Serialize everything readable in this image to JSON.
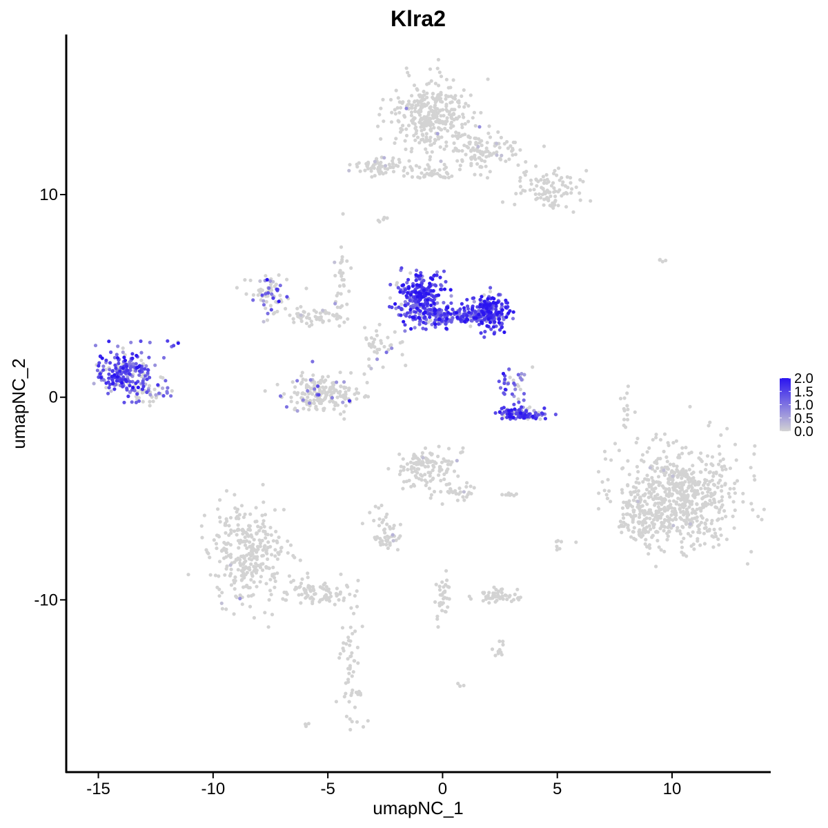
{
  "chart_data": {
    "type": "scatter",
    "title": "Klra2",
    "xlabel": "umapNC_1",
    "ylabel": "umapNC_2",
    "xlim": [
      -16.4,
      14.3
    ],
    "ylim": [
      -18.5,
      17.9
    ],
    "x_ticks": [
      -15,
      -10,
      -5,
      0,
      5,
      10
    ],
    "x_tick_labels": [
      "-15",
      "-10",
      "-5",
      "0",
      "5",
      "10"
    ],
    "y_ticks": [
      -10,
      0,
      10
    ],
    "y_tick_labels": [
      "-10",
      "0",
      "10"
    ],
    "grid": false,
    "color_scale": {
      "low_color": "#d3d3d3",
      "high_color": "#2a14f0",
      "min": 0.0,
      "max": 2.0,
      "ticks": [
        0.0,
        0.5,
        1.0,
        1.5,
        2.0
      ],
      "tick_labels": [
        "0.0",
        "0.5",
        "1.0",
        "1.5",
        "2.0"
      ],
      "legend_position": "right"
    },
    "clusters": [
      {
        "cx": -0.5,
        "cy": 13.9,
        "rx": 1.6,
        "ry": 1.6,
        "n": 320,
        "expr": 0.0,
        "expr_frac": 0.01
      },
      {
        "cx": 1.8,
        "cy": 12.1,
        "rx": 1.4,
        "ry": 0.9,
        "n": 110,
        "expr": 0.0,
        "expr_frac": 0.02
      },
      {
        "cx": 4.6,
        "cy": 10.2,
        "rx": 1.2,
        "ry": 0.9,
        "n": 100,
        "expr": 0.0,
        "expr_frac": 0.0
      },
      {
        "cx": -2.8,
        "cy": 11.4,
        "rx": 1.2,
        "ry": 0.4,
        "n": 60,
        "expr": 0.0,
        "expr_frac": 0.03
      },
      {
        "cx": -0.6,
        "cy": 11.1,
        "rx": 1.0,
        "ry": 0.3,
        "n": 40,
        "expr": 0.0,
        "expr_frac": 0.0
      },
      {
        "cx": -2.6,
        "cy": 8.8,
        "rx": 0.2,
        "ry": 0.2,
        "n": 6,
        "expr": 0.0,
        "expr_frac": 0.0
      },
      {
        "cx": -13.8,
        "cy": 1.2,
        "rx": 1.2,
        "ry": 1.0,
        "n": 220,
        "expr": 1.3,
        "expr_frac": 0.9
      },
      {
        "cx": -12.8,
        "cy": 0.2,
        "rx": 0.7,
        "ry": 0.4,
        "n": 35,
        "expr": 0.6,
        "expr_frac": 0.4
      },
      {
        "cx": -11.7,
        "cy": 2.6,
        "rx": 0.3,
        "ry": 0.2,
        "n": 5,
        "expr": 1.0,
        "expr_frac": 0.5
      },
      {
        "cx": -7.7,
        "cy": 5.2,
        "rx": 0.9,
        "ry": 0.9,
        "n": 70,
        "expr": 1.0,
        "expr_frac": 0.4
      },
      {
        "cx": -5.7,
        "cy": 4.0,
        "rx": 1.3,
        "ry": 0.4,
        "n": 50,
        "expr": 0.0,
        "expr_frac": 0.05
      },
      {
        "cx": -4.4,
        "cy": 5.5,
        "rx": 0.3,
        "ry": 1.8,
        "n": 35,
        "expr": 0.0,
        "expr_frac": 0.03
      },
      {
        "cx": -2.8,
        "cy": 2.5,
        "rx": 0.9,
        "ry": 1.0,
        "n": 40,
        "expr": 0.8,
        "expr_frac": 0.15
      },
      {
        "cx": -5.2,
        "cy": 0.2,
        "rx": 1.5,
        "ry": 0.75,
        "n": 200,
        "expr": 0.8,
        "expr_frac": 0.1
      },
      {
        "cx": -0.9,
        "cy": 5.0,
        "rx": 0.9,
        "ry": 1.1,
        "n": 260,
        "expr": 1.5,
        "expr_frac": 0.95
      },
      {
        "cx": 0.3,
        "cy": 4.0,
        "rx": 1.6,
        "ry": 0.4,
        "n": 170,
        "expr": 1.3,
        "expr_frac": 0.85
      },
      {
        "cx": 2.0,
        "cy": 4.2,
        "rx": 0.8,
        "ry": 0.8,
        "n": 200,
        "expr": 1.6,
        "expr_frac": 0.95
      },
      {
        "cx": 3.1,
        "cy": 0.8,
        "rx": 0.6,
        "ry": 0.9,
        "n": 40,
        "expr": 1.1,
        "expr_frac": 0.6
      },
      {
        "cx": 3.5,
        "cy": -0.8,
        "rx": 1.1,
        "ry": 0.3,
        "n": 110,
        "expr": 1.3,
        "expr_frac": 0.8
      },
      {
        "cx": -0.6,
        "cy": -3.5,
        "rx": 1.1,
        "ry": 0.9,
        "n": 120,
        "expr": 0.0,
        "expr_frac": 0.03
      },
      {
        "cx": 0.4,
        "cy": -4.8,
        "rx": 0.9,
        "ry": 0.5,
        "n": 30,
        "expr": 0.0,
        "expr_frac": 0.03
      },
      {
        "cx": -2.7,
        "cy": -6.1,
        "rx": 0.6,
        "ry": 0.8,
        "n": 25,
        "expr": 0.0,
        "expr_frac": 0.0
      },
      {
        "cx": -2.3,
        "cy": -7.1,
        "rx": 0.6,
        "ry": 0.3,
        "n": 25,
        "expr": 0.0,
        "expr_frac": 0.04
      },
      {
        "cx": 10.3,
        "cy": -5.0,
        "rx": 2.4,
        "ry": 2.3,
        "n": 650,
        "expr": 0.0,
        "expr_frac": 0.005
      },
      {
        "cx": 8.6,
        "cy": -6.0,
        "rx": 0.8,
        "ry": 1.2,
        "n": 60,
        "expr": 0.0,
        "expr_frac": 0.01
      },
      {
        "cx": -8.5,
        "cy": -7.6,
        "rx": 1.5,
        "ry": 2.2,
        "n": 300,
        "expr": 0.0,
        "expr_frac": 0.005
      },
      {
        "cx": -5.5,
        "cy": -9.6,
        "rx": 1.7,
        "ry": 0.5,
        "n": 80,
        "expr": 0.0,
        "expr_frac": 0.0
      },
      {
        "cx": -4.0,
        "cy": -13.0,
        "rx": 0.5,
        "ry": 2.6,
        "n": 60,
        "expr": 0.0,
        "expr_frac": 0.0
      },
      {
        "cx": 2.4,
        "cy": -9.8,
        "rx": 0.8,
        "ry": 0.3,
        "n": 55,
        "expr": 0.0,
        "expr_frac": 0.0
      },
      {
        "cx": 0.0,
        "cy": -10.0,
        "rx": 0.3,
        "ry": 1.5,
        "n": 35,
        "expr": 0.0,
        "expr_frac": 0.0
      },
      {
        "cx": 2.3,
        "cy": -12.5,
        "rx": 0.4,
        "ry": 0.3,
        "n": 12,
        "expr": 0.0,
        "expr_frac": 0.0
      },
      {
        "cx": 8.0,
        "cy": -0.5,
        "rx": 0.3,
        "ry": 1.2,
        "n": 14,
        "expr": 0.0,
        "expr_frac": 0.0
      },
      {
        "cx": 5.1,
        "cy": -7.3,
        "rx": 0.2,
        "ry": 0.3,
        "n": 6,
        "expr": 0.0,
        "expr_frac": 0.0
      },
      {
        "cx": 2.8,
        "cy": -4.8,
        "rx": 0.4,
        "ry": 0.1,
        "n": 8,
        "expr": 0.0,
        "expr_frac": 0.0
      },
      {
        "cx": -5.9,
        "cy": -16.2,
        "rx": 0.15,
        "ry": 0.15,
        "n": 4,
        "expr": 0.0,
        "expr_frac": 0.0
      },
      {
        "cx": 0.8,
        "cy": -14.2,
        "rx": 0.15,
        "ry": 0.15,
        "n": 3,
        "expr": 0.0,
        "expr_frac": 0.0
      },
      {
        "cx": 9.5,
        "cy": 6.7,
        "rx": 0.2,
        "ry": 0.1,
        "n": 4,
        "expr": 0.0,
        "expr_frac": 0.0
      }
    ]
  }
}
